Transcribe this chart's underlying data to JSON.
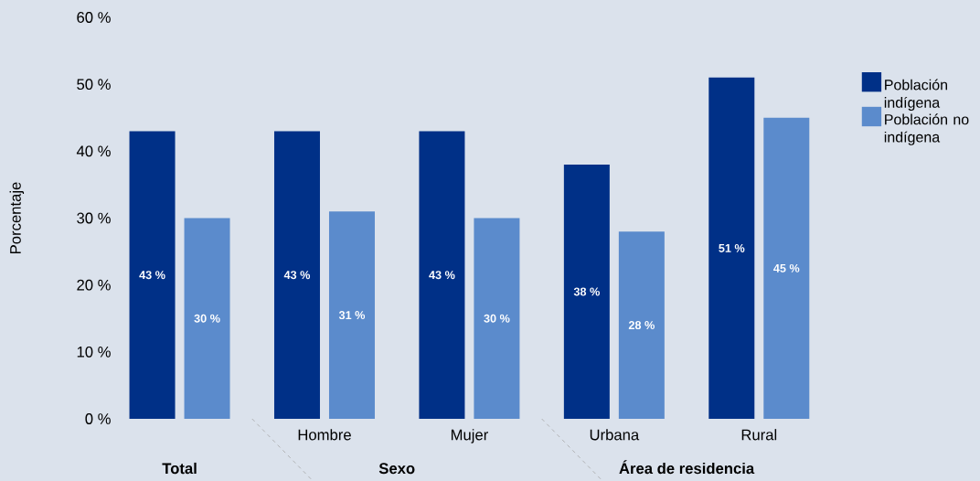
{
  "chart_data": {
    "type": "bar",
    "categories": [
      null,
      "Hombre",
      "Mujer",
      "Urbana",
      "Rural"
    ],
    "series": [
      {
        "name": "Población indígena",
        "color": "#003087",
        "values": [
          43,
          43,
          43,
          38,
          51
        ],
        "value_labels": [
          "43 %",
          "43 %",
          "43 %",
          "38 %",
          "51 %"
        ]
      },
      {
        "name": "Población no indígena",
        "color": "#5b8bcc",
        "values": [
          30,
          31,
          30,
          28,
          45
        ],
        "value_labels": [
          "30 %",
          "31 %",
          "30 %",
          "28 %",
          "45 %"
        ]
      }
    ],
    "ylabel": "Porcentaje",
    "ylim": [
      0,
      60
    ],
    "yticks": [
      {
        "value": 0,
        "label": "0 %"
      },
      {
        "value": 10,
        "label": "10 %"
      },
      {
        "value": 20,
        "label": "20 %"
      },
      {
        "value": 30,
        "label": "30 %"
      },
      {
        "value": 40,
        "label": "40 %"
      },
      {
        "value": 50,
        "label": "50 %"
      },
      {
        "value": 60,
        "label": "60 %"
      }
    ],
    "legend": "top right",
    "grid": false,
    "annotations": [
      "Total",
      "Sexo",
      "Área de residencia"
    ]
  }
}
